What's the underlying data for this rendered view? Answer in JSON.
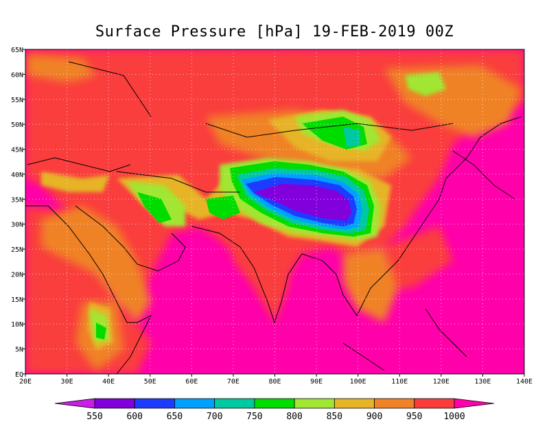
{
  "title": "Surface Pressure [hPa] 19-FEB-2019 00Z",
  "map": {
    "lon_range": [
      20,
      140
    ],
    "lat_range": [
      0,
      65
    ],
    "x_tick_labels": [
      "20E",
      "30E",
      "40E",
      "50E",
      "60E",
      "70E",
      "80E",
      "90E",
      "100E",
      "110E",
      "120E",
      "130E",
      "140E"
    ],
    "y_tick_labels": [
      "EQ",
      "5N",
      "10N",
      "15N",
      "20N",
      "25N",
      "30N",
      "35N",
      "40N",
      "45N",
      "50N",
      "55N",
      "60N",
      "65N"
    ],
    "grid": "dotted",
    "background_fill": "#ff00aa"
  },
  "colorbar": {
    "labels": [
      "550",
      "600",
      "650",
      "700",
      "750",
      "800",
      "850",
      "900",
      "950",
      "1000"
    ],
    "colors": [
      "#c81ee6",
      "#8200dc",
      "#1e3cff",
      "#00a0ff",
      "#00c8a0",
      "#00dc00",
      "#a0e632",
      "#e6b428",
      "#f08228",
      "#fa3c3c",
      "#ff00aa"
    ]
  },
  "legend": [
    {
      "range": "< 550",
      "color": "#c81ee6"
    },
    {
      "range": "550-600",
      "color": "#8200dc"
    },
    {
      "range": "600-650",
      "color": "#1e3cff"
    },
    {
      "range": "650-700",
      "color": "#00a0ff"
    },
    {
      "range": "700-750",
      "color": "#00c8a0"
    },
    {
      "range": "750-800",
      "color": "#00dc00"
    },
    {
      "range": "800-850",
      "color": "#a0e632"
    },
    {
      "range": "850-900",
      "color": "#e6b428"
    },
    {
      "range": "900-950",
      "color": "#f08228"
    },
    {
      "range": "950-1000",
      "color": "#fa3c3c"
    },
    {
      "range": "> 1000",
      "color": "#ff00aa"
    }
  ]
}
